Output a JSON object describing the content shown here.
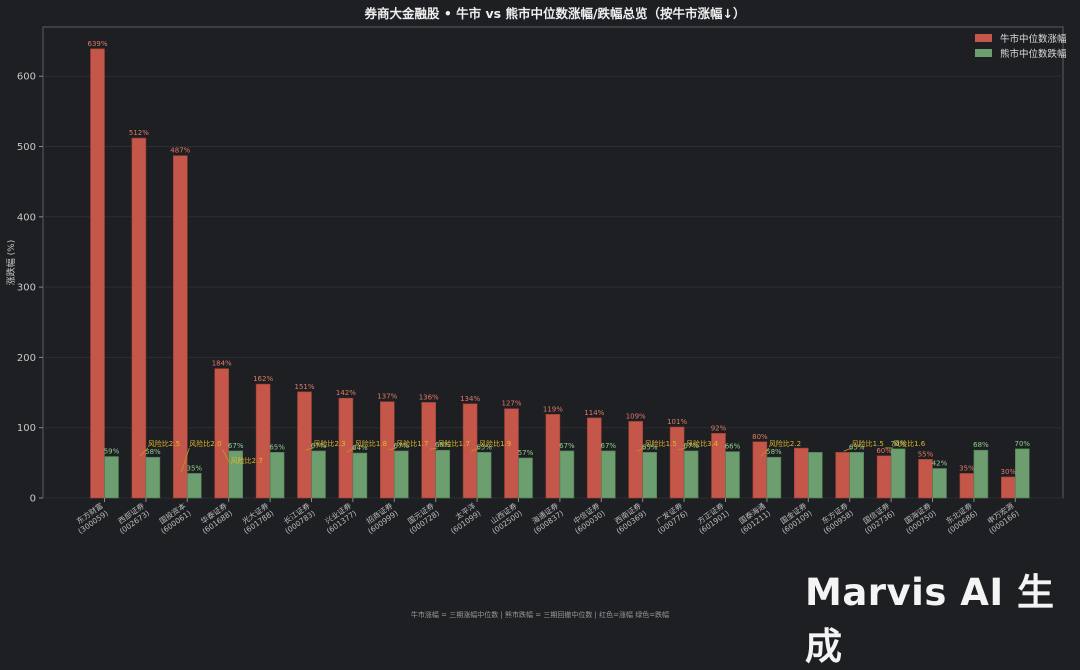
{
  "chart_data": {
    "type": "bar",
    "title": "券商大金融股 • 牛市 vs 熊市中位数涨幅/跌幅总览（按牛市涨幅↓）",
    "ylabel": "涨跌幅 (%)",
    "xlabel": "",
    "ylim": [
      0,
      670
    ],
    "yticks": [
      0,
      100,
      200,
      300,
      400,
      500,
      600
    ],
    "grid": true,
    "legend_position": "top-right",
    "categories": [
      "东方财富\n(300059)",
      "西部证券\n(002673)",
      "国投资本\n(600061)",
      "华泰证券\n(601688)",
      "光大证券\n(601788)",
      "长江证券\n(000783)",
      "兴业证券\n(601377)",
      "招商证券\n(600999)",
      "国元证券\n(000728)",
      "太平洋\n(601099)",
      "山西证券\n(002500)",
      "海通证券\n(600837)",
      "中信证券\n(600030)",
      "西南证券\n(600369)",
      "广发证券\n(000776)",
      "方正证券\n(601901)",
      "国泰海通\n(601211)",
      "国金证券\n(600109)",
      "东方证券\n(600958)",
      "国信证券\n(002736)",
      "国海证券\n(000750)",
      "东北证券\n(000686)",
      "申万宏源\n(000166)"
    ],
    "series": [
      {
        "name": "牛市中位数涨幅",
        "color": "#c4574a",
        "values": [
          639,
          512,
          487,
          184,
          162,
          151,
          142,
          137,
          136,
          134,
          127,
          119,
          114,
          109,
          101,
          92,
          80,
          71,
          65,
          60,
          55,
          35,
          30
        ],
        "labels": [
          "639%",
          "512%",
          "487%",
          "184%",
          "162%",
          "151%",
          "142%",
          "137%",
          "136%",
          "134%",
          "127%",
          "119%",
          "114%",
          "109%",
          "101%",
          "92%",
          "80%",
          "",
          "",
          "60%",
          "55%",
          "35%",
          "30%"
        ]
      },
      {
        "name": "熊市中位数跌幅",
        "color": "#6c9e6f",
        "values": [
          59,
          58,
          35,
          67,
          65,
          67,
          64,
          67,
          68,
          65,
          57,
          67,
          67,
          65,
          67,
          66,
          58,
          65,
          65,
          70,
          42,
          68,
          70
        ],
        "labels": [
          "59%",
          "58%",
          "35%",
          "67%",
          "65%",
          "67%",
          "64%",
          "67%",
          "68%",
          "65%",
          "57%",
          "67%",
          "67%",
          "65%",
          "67%",
          "66%",
          "58%",
          "",
          "65%",
          "70%",
          "42%",
          "68%",
          "70%"
        ]
      }
    ],
    "annotations": [
      {
        "index": 1,
        "text": "风险比2.5"
      },
      {
        "index": 2,
        "text": "风险比2.0"
      },
      {
        "index": 3,
        "text": "风险比2.7"
      },
      {
        "index": 5,
        "text": "风险比2.3"
      },
      {
        "index": 6,
        "text": "风险比1.8"
      },
      {
        "index": 7,
        "text": "风险比1.7"
      },
      {
        "index": 8,
        "text": "风险比1.7"
      },
      {
        "index": 9,
        "text": "风险比1.9"
      },
      {
        "index": 13,
        "text": "风险比1.5"
      },
      {
        "index": 14,
        "text": "风险比3.4"
      },
      {
        "index": 16,
        "text": "风险比2.2"
      },
      {
        "index": 18,
        "text": "风险比1.5"
      },
      {
        "index": 19,
        "text": "风险比1.6"
      }
    ]
  },
  "footnote": "牛市涨幅 = 三期涨幅中位数  |  熊市跌幅 = 三期回撤中位数  |  红色=涨幅 绿色=跌幅",
  "watermark": "Marvis AI 生成"
}
